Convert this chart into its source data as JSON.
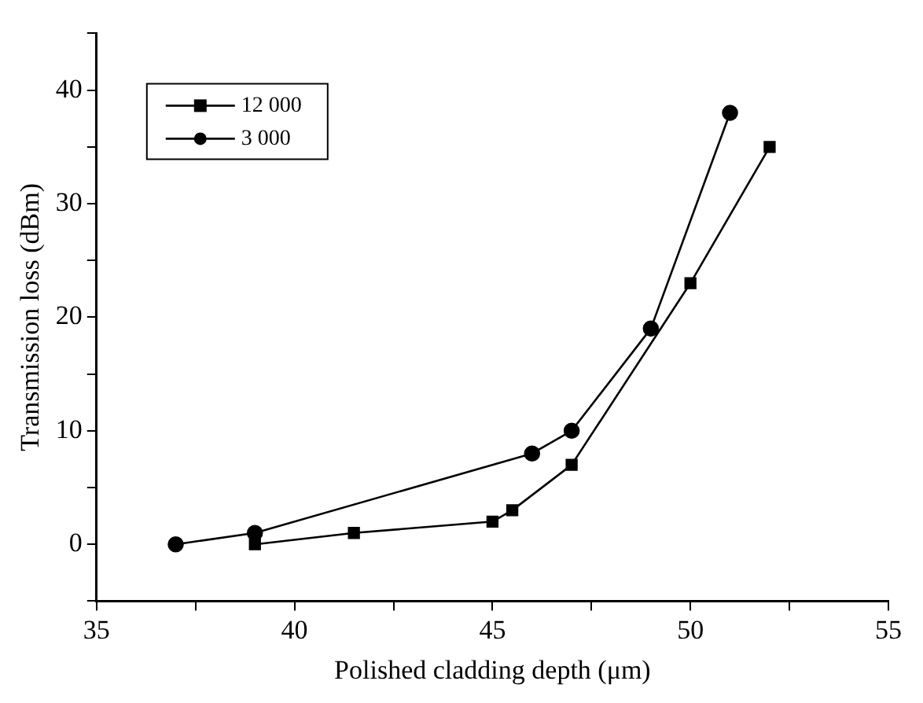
{
  "chart_data": {
    "type": "line",
    "xlabel": "Polished cladding depth (μm)",
    "ylabel": "Transmission loss (dBm)",
    "xlim": [
      35,
      55
    ],
    "xticks": [
      35,
      {
        "value": 37.5,
        "label": null
      },
      40,
      {
        "value": 42.5,
        "label": null
      },
      45,
      {
        "value": 47.5,
        "label": null
      },
      50,
      {
        "value": 52.5,
        "label": null
      },
      55
    ],
    "ylim": [
      -5,
      45
    ],
    "yticks": [
      {
        "value": -5,
        "label": null
      },
      0,
      {
        "value": 5,
        "label": null
      },
      10,
      {
        "value": 15,
        "label": null
      },
      20,
      {
        "value": 25,
        "label": null
      },
      30,
      {
        "value": 35,
        "label": null
      },
      40,
      {
        "value": 45,
        "label": null
      }
    ],
    "legend": "top left",
    "grid": false,
    "series": [
      {
        "name": "12 000",
        "color": "#000000",
        "marker": "square",
        "x": [
          39,
          41.5,
          45,
          45.5,
          47,
          50,
          52
        ],
        "values": [
          0,
          1,
          2,
          3,
          7,
          23,
          35
        ]
      },
      {
        "name": "3 000",
        "color": "#000000",
        "marker": "circle",
        "x": [
          37,
          39,
          46,
          47,
          49,
          51
        ],
        "values": [
          0,
          1,
          8,
          10,
          19,
          38
        ]
      }
    ]
  }
}
